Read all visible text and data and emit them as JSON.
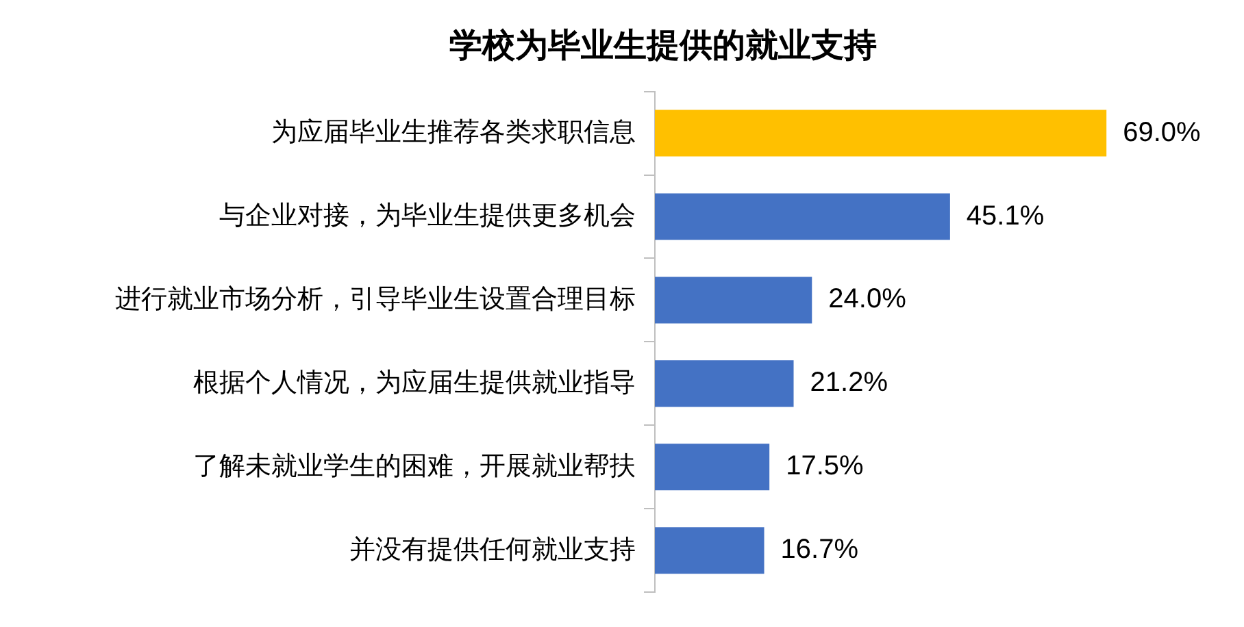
{
  "chart_data": {
    "type": "bar",
    "orientation": "horizontal",
    "title": "学校为毕业生提供的就业支持",
    "categories": [
      "为应届毕业生推荐各类求职信息",
      "与企业对接，为毕业生提供更多机会",
      "进行就业市场分析，引导毕业生设置合理目标",
      "根据个人情况，为应届生提供就业指导",
      "了解未就业学生的困难，开展就业帮扶",
      "并没有提供任何就业支持"
    ],
    "values": [
      69.0,
      45.1,
      24.0,
      21.2,
      17.5,
      16.7
    ],
    "value_labels": [
      "69.0%",
      "45.1%",
      "24.0%",
      "21.2%",
      "17.5%",
      "16.7%"
    ],
    "colors": [
      "#ffc000",
      "#4472c4",
      "#4472c4",
      "#4472c4",
      "#4472c4",
      "#4472c4"
    ],
    "legend": false,
    "grid": false
  }
}
